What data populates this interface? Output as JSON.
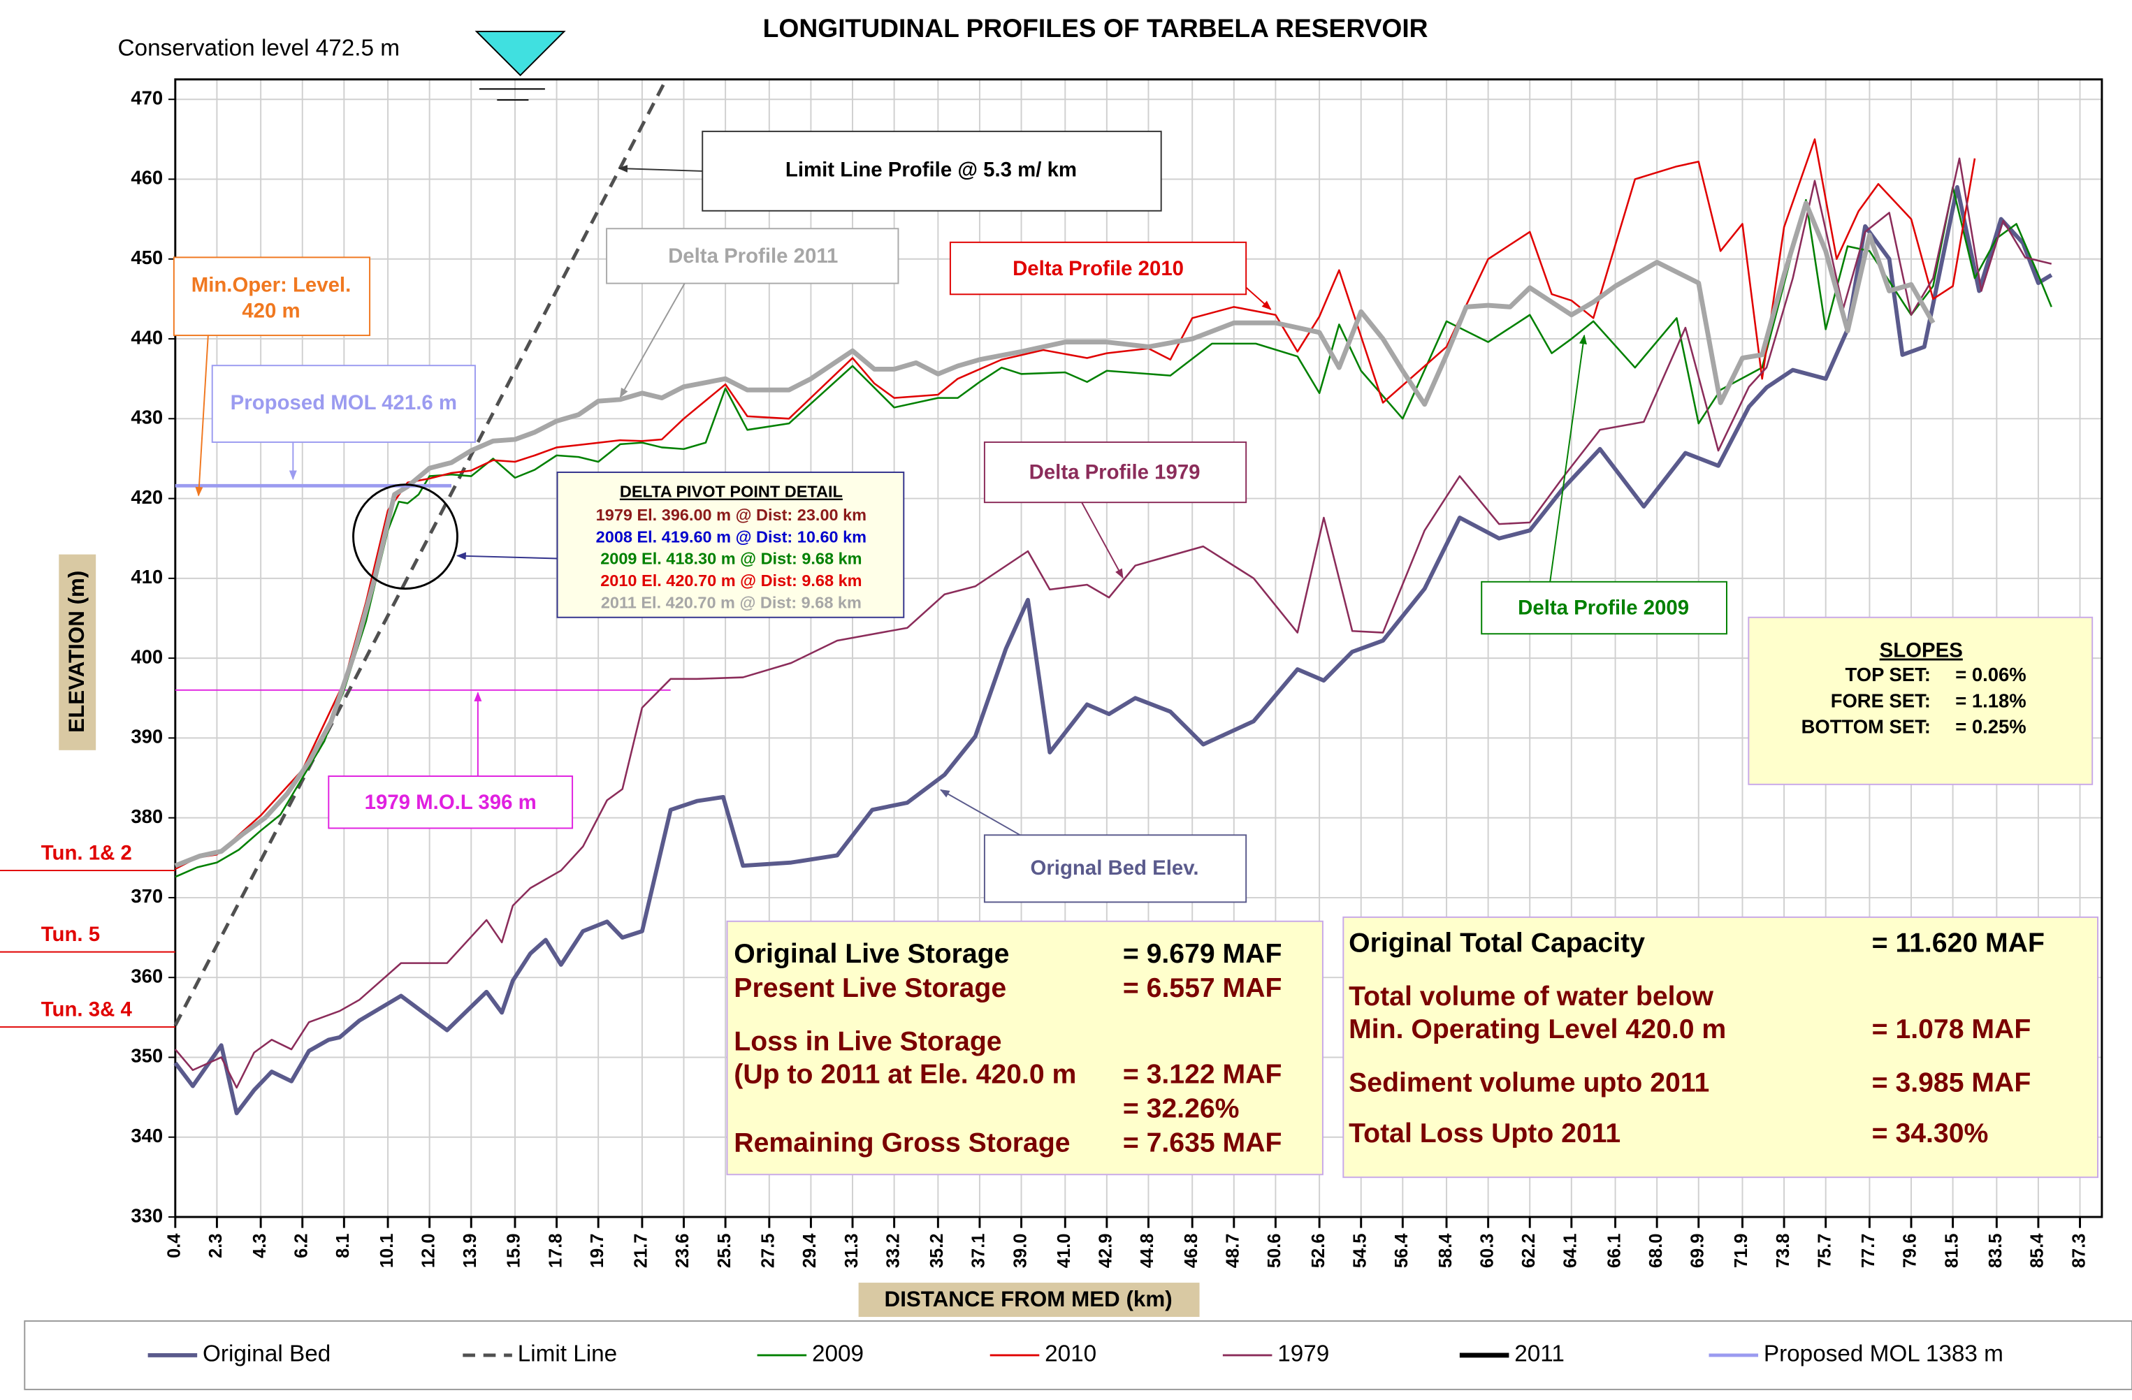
{
  "chart_data": {
    "type": "line",
    "title": "LONGITUDINAL PROFILES OF TARBELA RESERVOIR",
    "xlabel": "DISTANCE FROM MED (km)",
    "ylabel": "ELEVATION (m)",
    "xlim": [
      0.4,
      88.3
    ],
    "ylim": [
      330,
      472.5
    ],
    "yticks": [
      330,
      340,
      350,
      360,
      370,
      380,
      390,
      400,
      410,
      420,
      430,
      440,
      450,
      460,
      470
    ],
    "xticks": [
      0.4,
      2.3,
      4.3,
      6.2,
      8.1,
      10.1,
      {
        "value": 12,
        "label": "12.0"
      },
      13.9,
      15.9,
      17.8,
      19.7,
      21.7,
      23.6,
      25.5,
      27.5,
      29.4,
      31.3,
      33.2,
      35.2,
      37.1,
      {
        "value": 39,
        "label": "39.0"
      },
      {
        "value": 41,
        "label": "41.0"
      },
      42.9,
      44.8,
      46.8,
      48.7,
      50.6,
      52.6,
      54.5,
      56.4,
      58.4,
      60.3,
      62.2,
      64.1,
      66.1,
      {
        "value": 68,
        "label": "68.0"
      },
      69.9,
      71.9,
      73.8,
      75.7,
      77.7,
      79.6,
      81.5,
      83.5,
      85.4,
      87.3
    ],
    "grid": true,
    "legend": "bottom",
    "series": [
      {
        "name": "Original Bed",
        "color": "#5a5a8c",
        "x": [
          0.4,
          1.2,
          2.5,
          3.2,
          4.0,
          4.8,
          5.7,
          6.5,
          7.4,
          7.9,
          8.8,
          10.7,
          12.8,
          14.6,
          15.3,
          15.8,
          16.6,
          17.3,
          18.0,
          19.0,
          20.1,
          20.8,
          21.7,
          23.0,
          24.2,
          25.4,
          26.3,
          28.5,
          30.6,
          32.2,
          33.8,
          35.5,
          36.9,
          38.3,
          39.3,
          40.3,
          42.0,
          43.0,
          44.2,
          45.8,
          47.3,
          49.6,
          51.6,
          52.8,
          54.1,
          55.5,
          57.4,
          59.0,
          60.8,
          62.2,
          63.7,
          65.4,
          67.4,
          69.3,
          70.8,
          72.2,
          73.0,
          74.2,
          75.7,
          76.7,
          77.5,
          78.6,
          79.2,
          80.2,
          81.7,
          82.7,
          83.7,
          84.7,
          85.4,
          86.0
        ],
        "values": [
          349.3,
          346.4,
          351.5,
          343,
          345.9,
          348.2,
          347,
          350.8,
          352.2,
          352.5,
          354.6,
          357.7,
          353.4,
          358.2,
          355.6,
          359.6,
          363,
          364.7,
          361.6,
          365.8,
          367,
          365,
          365.8,
          381,
          382.1,
          382.6,
          374,
          374.4,
          375.3,
          381,
          381.9,
          385.4,
          390.2,
          401.2,
          407.3,
          388.2,
          394.2,
          393,
          395,
          393.3,
          389.2,
          392.1,
          398.6,
          397.2,
          400.8,
          402.2,
          408.7,
          417.6,
          415,
          416,
          421.2,
          426.2,
          419,
          425.7,
          424.1,
          431.5,
          433.9,
          436.1,
          435,
          441.2,
          454.1,
          450,
          438,
          439,
          459,
          446,
          455,
          452,
          447,
          448
        ]
      },
      {
        "name": "Limit Line",
        "color": "#505050",
        "dash": true,
        "x": [
          0.4,
          22.7
        ],
        "values": [
          354,
          472
        ]
      },
      {
        "name": "2009",
        "color": "#008000",
        "x": [
          0.4,
          1.4,
          2.3,
          3.3,
          4.3,
          5.2,
          6.2,
          7.2,
          8.1,
          9.1,
          10.1,
          10.6,
          11.0,
          11.5,
          12.0,
          13.0,
          13.9,
          14.9,
          15.9,
          16.8,
          17.8,
          18.8,
          19.7,
          20.7,
          21.7,
          22.6,
          23.6,
          24.6,
          25.5,
          26.5,
          28.4,
          31.3,
          33.2,
          35.2,
          36.1,
          37.1,
          38.1,
          39.0,
          41.0,
          42.0,
          42.9,
          45.8,
          47.7,
          49.7,
          51.6,
          52.6,
          53.5,
          54.5,
          56.4,
          58.4,
          60.3,
          62.2,
          63.2,
          64.1,
          65.1,
          67.0,
          68.9,
          69.9,
          70.9,
          72.8,
          74.8,
          75.7,
          76.7,
          77.7,
          79.6,
          80.6,
          81.5,
          82.5,
          83.5,
          84.4,
          85.4,
          86.0
        ],
        "values": [
          372.6,
          373.8,
          374.4,
          376,
          378.4,
          380.4,
          385,
          389.6,
          396,
          404.6,
          416,
          419.6,
          419.4,
          420.5,
          422.8,
          423,
          422.8,
          425,
          422.6,
          423.6,
          425.4,
          425.2,
          424.6,
          426.8,
          427,
          426.4,
          426.2,
          427,
          433.8,
          428.6,
          429.4,
          436.6,
          431.4,
          432.6,
          432.6,
          434.6,
          436.4,
          435.6,
          435.8,
          434.6,
          436,
          435.4,
          439.4,
          439.4,
          437.8,
          433.2,
          441.8,
          436,
          430,
          442.2,
          439.6,
          443,
          438.2,
          440,
          442.2,
          436.4,
          442.6,
          429.4,
          433.6,
          436.4,
          457.4,
          441.2,
          451.6,
          451,
          443,
          446.6,
          459,
          447.6,
          452.6,
          454.4,
          448,
          444
        ]
      },
      {
        "name": "2010",
        "color": "#e00000",
        "x": [
          0.4,
          1.4,
          2.3,
          4.3,
          6.2,
          8.1,
          9.1,
          10.1,
          11.0,
          12.0,
          13.0,
          13.9,
          14.9,
          15.9,
          16.8,
          17.8,
          18.8,
          20.7,
          21.7,
          22.6,
          23.6,
          25.5,
          26.5,
          28.4,
          31.3,
          32.3,
          33.2,
          35.2,
          36.1,
          38.1,
          40.0,
          42.0,
          42.9,
          44.8,
          45.8,
          46.8,
          48.7,
          50.6,
          51.6,
          52.6,
          53.5,
          55.5,
          58.4,
          60.3,
          62.2,
          63.2,
          64.1,
          65.1,
          67.0,
          68.9,
          69.9,
          70.9,
          71.9,
          72.8,
          73.8,
          75.2,
          76.2,
          77.2,
          78.1,
          79.6,
          80.6,
          81.5,
          82.5
        ],
        "values": [
          373.6,
          375,
          375.4,
          380.3,
          386,
          397,
          407,
          418.5,
          422,
          422.5,
          423.2,
          423.5,
          424.8,
          424.6,
          425.4,
          426.4,
          426.7,
          427.3,
          427.2,
          427.4,
          430,
          434.3,
          430.3,
          430,
          437.6,
          434.4,
          432.6,
          433,
          435,
          437.4,
          438.6,
          437.6,
          438.2,
          438.8,
          437.4,
          442.6,
          444,
          443,
          438.4,
          442.8,
          448.6,
          432,
          439,
          450,
          453.4,
          445.6,
          444.8,
          442.6,
          460,
          461.6,
          462.2,
          451,
          454.4,
          435,
          454,
          465,
          450,
          456,
          459.4,
          455,
          445,
          446.6,
          462.6
        ]
      },
      {
        "name": "1979",
        "color": "#8b2c5a",
        "x": [
          0.4,
          1.2,
          2.5,
          3.2,
          4.0,
          4.8,
          5.7,
          6.5,
          7.9,
          8.8,
          10.7,
          12.8,
          14.6,
          15.3,
          15.8,
          16.6,
          18.0,
          19.0,
          20.1,
          20.8,
          21.7,
          23.0,
          24.2,
          26.3,
          28.5,
          30.6,
          33.8,
          35.5,
          36.9,
          39.3,
          40.3,
          42.0,
          43.0,
          44.2,
          47.3,
          49.6,
          51.6,
          52.8,
          54.1,
          55.5,
          57.4,
          59.0,
          60.8,
          62.2,
          63.7,
          65.4,
          67.4,
          69.3,
          70.8,
          72.2,
          73.0,
          74.2,
          75.2,
          76.5,
          77.5,
          78.6,
          79.6,
          80.6,
          81.8,
          82.8,
          83.8,
          84.8,
          86.0
        ],
        "values": [
          351,
          348.4,
          350,
          346.2,
          350.6,
          352.2,
          351,
          354.4,
          355.8,
          357.2,
          361.8,
          361.8,
          367.2,
          364.4,
          369,
          371.2,
          373.4,
          376.4,
          382.2,
          383.6,
          393.8,
          397.4,
          397.4,
          397.6,
          399.4,
          402.2,
          403.8,
          408,
          409,
          413.4,
          408.6,
          409.2,
          407.6,
          411.6,
          414,
          410,
          403.2,
          417.6,
          403.4,
          403.2,
          416,
          422.8,
          416.8,
          417,
          422.6,
          428.6,
          429.6,
          441.4,
          426,
          434,
          436.4,
          447.6,
          459.8,
          443.8,
          453.4,
          455.8,
          443,
          447.6,
          462.6,
          446,
          454.8,
          450.2,
          449.4
        ]
      },
      {
        "name": "2011",
        "color": "#a6a6a6",
        "legend_color": "#000000",
        "x": [
          0.4,
          1.5,
          2.5,
          3.5,
          4.5,
          5.5,
          6.5,
          7.5,
          8.5,
          9.5,
          10.4,
          11.0,
          12.0,
          13.0,
          13.9,
          14.9,
          15.9,
          16.8,
          17.8,
          18.8,
          19.7,
          20.7,
          21.7,
          22.6,
          23.6,
          25.5,
          26.5,
          27.5,
          28.4,
          29.4,
          31.3,
          32.3,
          33.2,
          34.2,
          35.2,
          36.1,
          37.1,
          39.0,
          41.0,
          42.9,
          44.8,
          46.8,
          48.7,
          50.6,
          52.6,
          53.5,
          54.5,
          55.5,
          56.4,
          57.4,
          58.4,
          59.3,
          60.3,
          61.3,
          62.2,
          64.1,
          65.1,
          66.1,
          68.0,
          69.9,
          70.9,
          71.9,
          72.8,
          73.8,
          74.8,
          75.7,
          76.7,
          77.7,
          78.6,
          79.6,
          80.6
        ],
        "values": [
          374,
          375.2,
          375.8,
          378,
          380,
          383,
          387,
          392,
          400,
          410,
          420.5,
          421.5,
          423.8,
          424.5,
          426,
          427.2,
          427.4,
          428.3,
          429.7,
          430.5,
          432.2,
          432.4,
          433.2,
          432.6,
          434,
          435,
          433.6,
          433.6,
          433.6,
          435,
          438.5,
          436.2,
          436.2,
          437,
          435.6,
          436.6,
          437.4,
          438.4,
          439.6,
          439.6,
          439,
          440,
          442,
          442,
          440.8,
          436.4,
          443.4,
          440,
          436,
          431.8,
          438,
          444,
          444.2,
          444,
          446.4,
          443,
          444.6,
          446.6,
          449.6,
          447,
          432,
          437.6,
          438,
          448,
          457,
          451,
          441,
          453,
          446,
          446.8,
          442
        ]
      },
      {
        "name": "Proposed MOL 1383 m",
        "color": "#9b9bf0",
        "x": [
          0.4,
          13.0
        ],
        "values": [
          421.6,
          421.6
        ]
      }
    ],
    "conservation": {
      "label": "Conservation level 472.5 m",
      "value": 472.5
    },
    "mol_1979": {
      "value": 396,
      "x_end": 23
    },
    "tunnels": [
      {
        "label": "Tun. 1& 2",
        "value": 373.4
      },
      {
        "label": "Tun. 5",
        "value": 363.2
      },
      {
        "label": "Tun. 3& 4",
        "value": 353.8
      }
    ],
    "annotations": {
      "limit_line": "Limit Line Profile @ 5.3 m/ km",
      "delta_2011": "Delta Profile 2011",
      "delta_2010": "Delta Profile 2010",
      "delta_1979": "Delta Profile 1979",
      "delta_2009": "Delta Profile 2009",
      "original_bed": "Orignal Bed Elev.",
      "min_oper": [
        "Min.Oper: Level.",
        "420 m"
      ],
      "proposed_mol": "Proposed MOL 421.6 m",
      "mol_1979": "1979 M.O.L  396 m"
    },
    "pivot": {
      "title": "DELTA  PIVOT  POINT  DETAIL",
      "lines": [
        {
          "text": "1979 El. 396.00  m @ Dist: 23.00 km",
          "color": "#8b1a1a"
        },
        {
          "text": "2008 El. 419.60 m @ Dist: 10.60 km",
          "color": "#0000cc"
        },
        {
          "text": "2009 El. 418.30 m @ Dist: 9.68 km",
          "color": "#008000"
        },
        {
          "text": "2010 El. 420.70 m @ Dist: 9.68 km",
          "color": "#e00000"
        },
        {
          "text": "2011 El. 420.70 m @ Dist: 9.68 km",
          "color": "#a6a6a6"
        }
      ]
    },
    "slopes": {
      "title": "SLOPES",
      "rows": [
        [
          "TOP SET:",
          "=   0.06%"
        ],
        [
          "FORE SET:",
          "=   1.18%"
        ],
        [
          "BOTTOM SET:",
          "=   0.25%"
        ]
      ]
    },
    "storage": [
      {
        "label": "Original  Live Storage",
        "value": "= 9.679 MAF",
        "color": "#000000"
      },
      {
        "label": "Present  Live Storage",
        "value": "= 6.557 MAF",
        "color": "#7a0000"
      },
      {
        "label": "Loss in  Live Storage",
        "color": "#7a0000"
      },
      {
        "label": "(Up to 2011 at Ele. 420.0 m",
        "value": "= 3.122 MAF",
        "color": "#7a0000"
      },
      {
        "value": "= 32.26%",
        "color": "#7a0000"
      },
      {
        "label": "Remaining Gross  Storage",
        "value": "= 7.635 MAF",
        "color": "#7a0000"
      }
    ],
    "capacity": [
      {
        "label": "Original  Total Capacity",
        "value": "= 11.620 MAF",
        "color": "#000000"
      },
      {
        "label": "Total volume of water below",
        "color": "#7a0000"
      },
      {
        "label": "Min. Operating Level 420.0 m",
        "value": "= 1.078  MAF",
        "color": "#7a0000"
      },
      {
        "label": "Sediment volume upto 2011",
        "value": "= 3.985 MAF",
        "color": "#7a0000"
      },
      {
        "label": "Total Loss Upto 2011",
        "value": "= 34.30%",
        "color": "#7a0000"
      }
    ]
  }
}
